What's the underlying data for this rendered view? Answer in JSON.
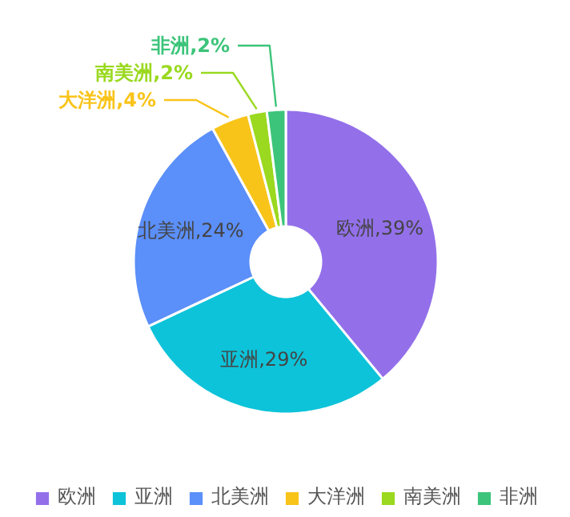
{
  "chart_data": {
    "type": "donut",
    "categories": [
      "欧洲",
      "亚洲",
      "北美洲",
      "大洋洲",
      "南美洲",
      "非洲"
    ],
    "values": [
      39,
      29,
      24,
      4,
      2,
      2
    ],
    "colors": [
      "#9370ea",
      "#0dc3d9",
      "#5b8ff9",
      "#f9c41a",
      "#9ad91f",
      "#3cc47a"
    ],
    "value_labels": [
      "欧洲,39%",
      "亚洲,29%",
      "北美洲,24%",
      "大洋洲,4%",
      "南美洲,2%",
      "非洲,2%"
    ],
    "legend": "bottom"
  }
}
